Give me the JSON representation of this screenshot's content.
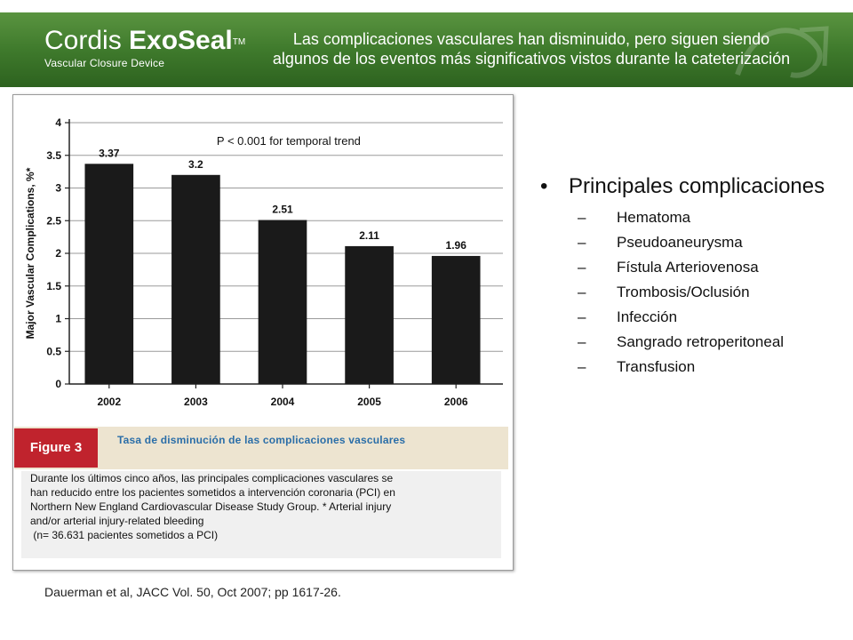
{
  "header": {
    "logo_name_light": "Cordis ",
    "logo_name_bold": "ExoSeal",
    "logo_tm": "TM",
    "logo_subtitle": "Vascular Closure Device",
    "title_line1": "Las complicaciones vasculares han disminuido, pero siguen siendo",
    "title_line2": "algunos de los eventos más significativos vistos durante la cateterización"
  },
  "figure": {
    "badge": "Figure 3",
    "title": "Tasa de disminución de las complicaciones vasculares",
    "caption_lines": [
      "Durante los últimos cinco años, las principales complicaciones vasculares se",
      "han reducido entre los pacientes sometidos a intervención coronaria (PCI) en",
      "Northern New England Cardiovascular Disease Study Group. * Arterial injury",
      "and/or arterial injury-related bleeding",
      " (n= 36.631 pacientes sometidos a PCI)"
    ]
  },
  "chart_data": {
    "type": "bar",
    "categories": [
      "2002",
      "2003",
      "2004",
      "2005",
      "2006"
    ],
    "values": [
      3.37,
      3.2,
      2.51,
      2.11,
      1.96
    ],
    "value_labels": [
      "3.37",
      "3.2",
      "2.51",
      "2.11",
      "1.96"
    ],
    "ylabel": "Major Vascular Complications, %*",
    "xlabel": "",
    "title": "",
    "annotation": "P < 0.001 for temporal trend",
    "ylim": [
      0,
      4
    ],
    "yticks": [
      "0",
      "0.5",
      "1",
      "1.5",
      "2",
      "2.5",
      "3",
      "3.5",
      "4"
    ],
    "grid": true,
    "bar_color": "#1a1a1a"
  },
  "reference": "Dauerman et al, JACC Vol. 50, Oct 2007; pp 1617-26.",
  "bullets": {
    "main_symbol": "•",
    "main": "Principales complicaciones",
    "dash": "–",
    "items": [
      "Hematoma",
      "Pseudoaneurysma",
      "Fístula Arteriovenosa",
      "Trombosis/Oclusión",
      "Infección",
      "Sangrado retroperitoneal",
      "Transfusion"
    ]
  },
  "colors": {
    "header_green": "#3f7a2c",
    "figure_badge": "#c0232d",
    "figure_title": "#2b6ea8",
    "figure_band": "#ede4d0"
  }
}
